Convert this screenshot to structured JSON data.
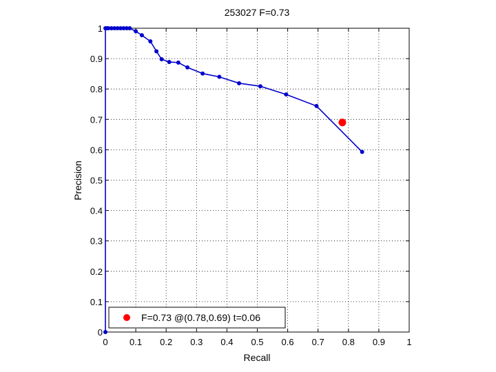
{
  "chart_data": {
    "type": "line",
    "title": "253027 F=0.73",
    "xlabel": "Recall",
    "ylabel": "Precision",
    "xlim": [
      0,
      1
    ],
    "ylim": [
      0,
      1
    ],
    "xticks": [
      0,
      0.1,
      0.2,
      0.3,
      0.4,
      0.5,
      0.6,
      0.7,
      0.8,
      0.9,
      1
    ],
    "yticks": [
      0,
      0.1,
      0.2,
      0.3,
      0.4,
      0.5,
      0.6,
      0.7,
      0.8,
      0.9,
      1
    ],
    "xtick_labels": [
      "0",
      "0.1",
      "0.2",
      "0.3",
      "0.4",
      "0.5",
      "0.6",
      "0.7",
      "0.8",
      "0.9",
      "1"
    ],
    "ytick_labels": [
      "0",
      "0.1",
      "0.2",
      "0.3",
      "0.4",
      "0.5",
      "0.6",
      "0.7",
      "0.8",
      "0.9",
      "1"
    ],
    "grid": true,
    "legend_position": "bottom-left",
    "colors": {
      "curve": "#0000cc",
      "marker": "#ff0000"
    },
    "series": [
      {
        "points": [
          [
            0.0,
            0.0
          ],
          [
            0.0,
            1.0
          ],
          [
            0.005,
            1.0
          ],
          [
            0.01,
            1.0
          ],
          [
            0.02,
            1.0
          ],
          [
            0.03,
            1.0
          ],
          [
            0.04,
            1.0
          ],
          [
            0.05,
            1.0
          ],
          [
            0.06,
            1.0
          ],
          [
            0.07,
            1.0
          ],
          [
            0.08,
            1.0
          ],
          [
            0.1,
            0.99
          ],
          [
            0.12,
            0.977
          ],
          [
            0.148,
            0.957
          ],
          [
            0.168,
            0.924
          ],
          [
            0.185,
            0.898
          ],
          [
            0.21,
            0.889
          ],
          [
            0.24,
            0.887
          ],
          [
            0.27,
            0.871
          ],
          [
            0.32,
            0.851
          ],
          [
            0.375,
            0.84
          ],
          [
            0.44,
            0.819
          ],
          [
            0.51,
            0.809
          ],
          [
            0.595,
            0.782
          ],
          [
            0.695,
            0.744
          ],
          [
            0.845,
            0.593
          ]
        ]
      }
    ],
    "highlight": {
      "x": 0.78,
      "y": 0.69
    },
    "legend": {
      "label": "F=0.73 @(0.78,0.69) t=0.06"
    }
  }
}
